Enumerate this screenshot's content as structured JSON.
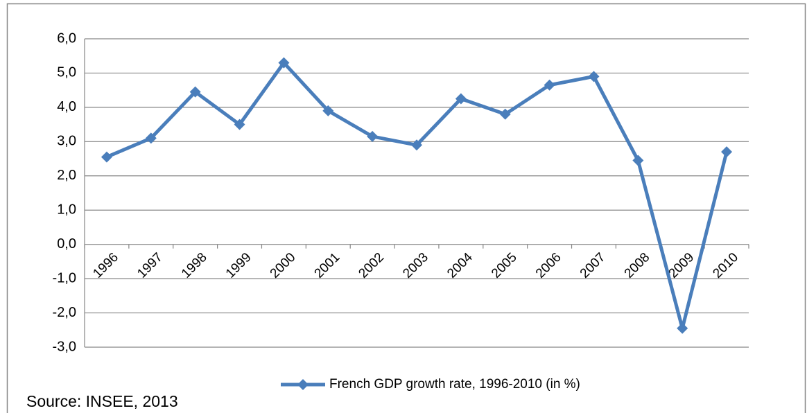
{
  "chart_data": {
    "type": "line",
    "categories": [
      "1996",
      "1997",
      "1998",
      "1999",
      "2000",
      "2001",
      "2002",
      "2003",
      "2004",
      "2005",
      "2006",
      "2007",
      "2008",
      "2009",
      "2010"
    ],
    "series": [
      {
        "name": "French GDP growth rate, 1996-2010 (in %)",
        "color": "#4a7ebb",
        "values": [
          2.55,
          3.1,
          4.45,
          3.5,
          5.3,
          3.9,
          3.15,
          2.9,
          4.25,
          3.8,
          4.65,
          4.9,
          2.45,
          -2.45,
          2.7
        ]
      }
    ],
    "ylim": [
      -3,
      6
    ],
    "yticks": [
      {
        "value": -3,
        "label": "-3,0"
      },
      {
        "value": -2,
        "label": "-2,0"
      },
      {
        "value": -1,
        "label": "-1,0"
      },
      {
        "value": 0,
        "label": "0,0"
      },
      {
        "value": 1,
        "label": "1,0"
      },
      {
        "value": 2,
        "label": "2,0"
      },
      {
        "value": 3,
        "label": "3,0"
      },
      {
        "value": 4,
        "label": "4,0"
      },
      {
        "value": 5,
        "label": "5,0"
      },
      {
        "value": 6,
        "label": "6,0"
      }
    ],
    "grid": true,
    "legend": "bottom",
    "source": "Source: INSEE, 2013"
  }
}
